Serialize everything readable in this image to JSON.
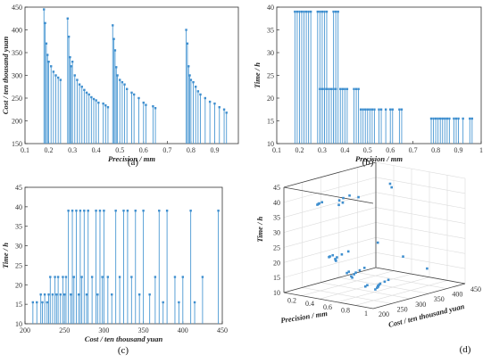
{
  "chart_data": [
    {
      "type": "stem",
      "panel_label": "(a)",
      "xlabel": "Precision / mm",
      "ylabel": "Cost / ten thousand yuan",
      "xlim": [
        0.1,
        1.0
      ],
      "ylim": [
        150,
        450
      ],
      "xticks": [
        0.1,
        0.2,
        0.3,
        0.4,
        0.5,
        0.6,
        0.7,
        0.8,
        0.9
      ],
      "yticks": [
        150,
        200,
        250,
        300,
        350,
        400,
        450
      ],
      "baseline": 150,
      "x": [
        0.18,
        0.185,
        0.19,
        0.195,
        0.2,
        0.21,
        0.22,
        0.23,
        0.24,
        0.25,
        0.28,
        0.285,
        0.29,
        0.295,
        0.3,
        0.31,
        0.32,
        0.33,
        0.34,
        0.35,
        0.36,
        0.37,
        0.38,
        0.39,
        0.4,
        0.41,
        0.43,
        0.44,
        0.45,
        0.47,
        0.475,
        0.48,
        0.485,
        0.49,
        0.5,
        0.51,
        0.52,
        0.53,
        0.55,
        0.56,
        0.58,
        0.6,
        0.61,
        0.64,
        0.65,
        0.78,
        0.785,
        0.79,
        0.795,
        0.8,
        0.81,
        0.82,
        0.83,
        0.84,
        0.86,
        0.88,
        0.9,
        0.92,
        0.94,
        0.95
      ],
      "y": [
        445,
        415,
        370,
        345,
        330,
        320,
        308,
        300,
        295,
        290,
        425,
        385,
        340,
        320,
        330,
        300,
        290,
        280,
        275,
        268,
        262,
        258,
        252,
        248,
        245,
        240,
        238,
        234,
        230,
        410,
        380,
        355,
        318,
        300,
        290,
        285,
        280,
        270,
        262,
        258,
        250,
        240,
        235,
        232,
        228,
        400,
        370,
        320,
        300,
        290,
        285,
        275,
        265,
        258,
        250,
        242,
        238,
        230,
        225,
        218
      ]
    },
    {
      "type": "stem",
      "panel_label": "(b)",
      "xlabel": "Precision / mm",
      "ylabel": "Time / h",
      "xlim": [
        0.1,
        1.0
      ],
      "ylim": [
        10,
        40
      ],
      "xticks": [
        0.1,
        0.2,
        0.3,
        0.4,
        0.5,
        0.6,
        0.7,
        0.8,
        0.9,
        1
      ],
      "yticks": [
        10,
        15,
        20,
        25,
        30,
        35,
        40
      ],
      "baseline": 10,
      "x": [
        0.18,
        0.19,
        0.2,
        0.21,
        0.22,
        0.23,
        0.24,
        0.25,
        0.28,
        0.29,
        0.3,
        0.31,
        0.32,
        0.35,
        0.36,
        0.37,
        0.29,
        0.3,
        0.31,
        0.32,
        0.33,
        0.34,
        0.35,
        0.36,
        0.38,
        0.39,
        0.4,
        0.41,
        0.44,
        0.45,
        0.46,
        0.47,
        0.48,
        0.49,
        0.5,
        0.51,
        0.52,
        0.53,
        0.55,
        0.56,
        0.58,
        0.6,
        0.61,
        0.64,
        0.65,
        0.78,
        0.79,
        0.8,
        0.81,
        0.82,
        0.83,
        0.84,
        0.85,
        0.86,
        0.88,
        0.89,
        0.9,
        0.92,
        0.95,
        0.96
      ],
      "y": [
        39,
        39,
        39,
        39,
        39,
        39,
        39,
        39,
        39,
        39,
        39,
        39,
        39,
        39,
        39,
        39,
        22,
        22,
        22,
        22,
        22,
        22,
        22,
        22,
        22,
        22,
        22,
        22,
        22,
        22,
        22,
        17.5,
        17.5,
        17.5,
        17.5,
        17.5,
        17.5,
        17.5,
        17.5,
        17.5,
        17.5,
        17.5,
        17.5,
        17.5,
        17.5,
        15.5,
        15.5,
        15.5,
        15.5,
        15.5,
        15.5,
        15.5,
        15.5,
        15.5,
        15.5,
        15.5,
        15.5,
        15.5,
        15.5,
        15.5
      ]
    },
    {
      "type": "stem",
      "panel_label": "(c)",
      "xlabel": "Cost / ten thousand yuan",
      "ylabel": "Time / h",
      "xlim": [
        200,
        450
      ],
      "ylim": [
        10,
        45
      ],
      "xticks": [
        200,
        250,
        300,
        350,
        400,
        450
      ],
      "yticks": [
        10,
        15,
        20,
        25,
        30,
        35,
        40,
        45
      ],
      "baseline": 10,
      "x": [
        210,
        215,
        220,
        222,
        225,
        228,
        230,
        232,
        235,
        238,
        240,
        242,
        245,
        248,
        250,
        252,
        255,
        258,
        260,
        262,
        265,
        268,
        270,
        272,
        275,
        278,
        280,
        285,
        290,
        292,
        295,
        298,
        300,
        305,
        310,
        315,
        320,
        325,
        330,
        335,
        340,
        345,
        350,
        358,
        365,
        370,
        375,
        380,
        390,
        395,
        400,
        410,
        415,
        425,
        445
      ],
      "y": [
        15.5,
        15.5,
        17.5,
        15.5,
        17.5,
        15.5,
        17.5,
        22,
        17.5,
        22,
        17.5,
        22,
        17.5,
        22,
        17.5,
        22,
        39,
        17.5,
        39,
        22,
        39,
        17.5,
        39,
        22,
        39,
        17.5,
        39,
        22,
        39,
        17.5,
        39,
        22,
        39,
        22,
        17.5,
        39,
        22,
        39,
        39,
        22,
        39,
        17.5,
        39,
        17.5,
        22,
        39,
        15.5,
        39,
        22,
        15.5,
        22,
        39,
        15.5,
        22,
        39
      ]
    },
    {
      "type": "scatter3d",
      "panel_label": "(d)",
      "xlabel": "Precision / mm",
      "ylabel": "Cost / ten thousand yuan",
      "zlabel": "Time / h",
      "xlim": [
        0,
        1
      ],
      "ylim": [
        200,
        450
      ],
      "zlim": [
        10,
        45
      ],
      "xticks": [
        0.2,
        0.4,
        0.6,
        0.8,
        1
      ],
      "yticks": [
        200,
        250,
        300,
        350,
        400,
        450
      ],
      "zticks": [
        10,
        15,
        20,
        25,
        30,
        35,
        40,
        45
      ],
      "points": [
        [
          0.18,
          445,
          39
        ],
        [
          0.2,
          330,
          39
        ],
        [
          0.22,
          308,
          39
        ],
        [
          0.25,
          290,
          39
        ],
        [
          0.28,
          425,
          39
        ],
        [
          0.3,
          330,
          39
        ],
        [
          0.33,
          280,
          39
        ],
        [
          0.36,
          262,
          39
        ],
        [
          0.18,
          260,
          39
        ],
        [
          0.19,
          250,
          39
        ],
        [
          0.2,
          245,
          39
        ],
        [
          0.21,
          240,
          39
        ],
        [
          0.29,
          385,
          22
        ],
        [
          0.31,
          300,
          22
        ],
        [
          0.34,
          275,
          22
        ],
        [
          0.38,
          252,
          22
        ],
        [
          0.41,
          240,
          22
        ],
        [
          0.44,
          234,
          22
        ],
        [
          0.46,
          230,
          22
        ],
        [
          0.3,
          260,
          22
        ],
        [
          0.31,
          250,
          22
        ],
        [
          0.32,
          245,
          22
        ],
        [
          0.47,
          410,
          17.5
        ],
        [
          0.49,
          300,
          17.5
        ],
        [
          0.52,
          280,
          17.5
        ],
        [
          0.55,
          262,
          17.5
        ],
        [
          0.58,
          250,
          17.5
        ],
        [
          0.61,
          235,
          17.5
        ],
        [
          0.65,
          228,
          17.5
        ],
        [
          0.48,
          260,
          17.5
        ],
        [
          0.5,
          250,
          17.5
        ],
        [
          0.78,
          400,
          15.5
        ],
        [
          0.8,
          290,
          15.5
        ],
        [
          0.82,
          275,
          15.5
        ],
        [
          0.84,
          258,
          15.5
        ],
        [
          0.86,
          250,
          15.5
        ],
        [
          0.88,
          242,
          15.5
        ],
        [
          0.9,
          238,
          15.5
        ],
        [
          0.92,
          230,
          15.5
        ],
        [
          0.95,
          218,
          15.5
        ],
        [
          0.79,
          235,
          15.5
        ],
        [
          0.81,
          225,
          15.5
        ]
      ]
    }
  ]
}
